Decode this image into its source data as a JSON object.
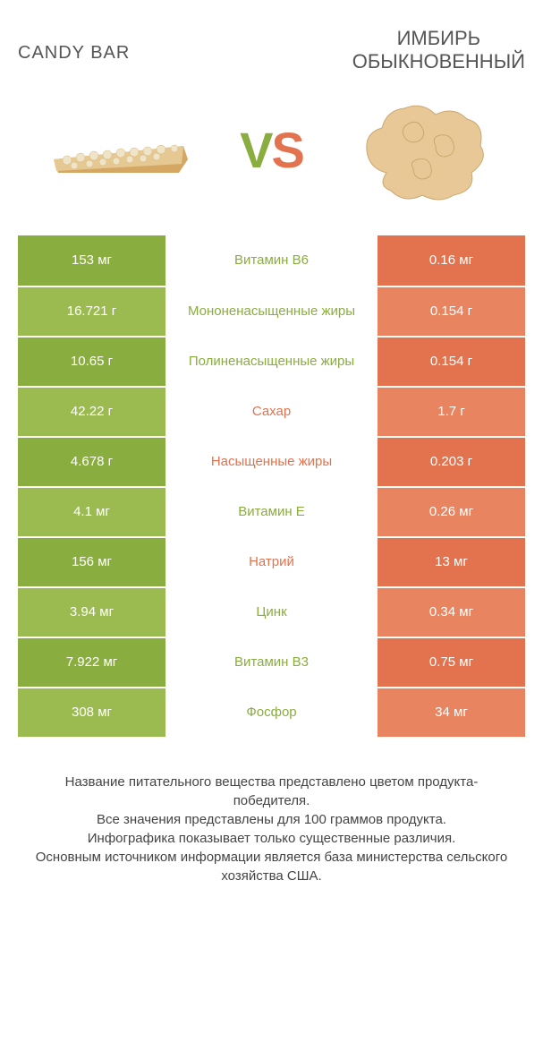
{
  "header": {
    "left_title": "CANDY BAR",
    "right_title_line1": "ИМБИРЬ",
    "right_title_line2": "ОБЫКНОВЕННЫЙ",
    "vs_v": "V",
    "vs_s": "S"
  },
  "colors": {
    "left_bar": "#8aad3f",
    "right_bar": "#e2734e",
    "left_bar_alt": "#9bbb50",
    "right_bar_alt": "#e8845f",
    "mid_green": "#8aad3f",
    "mid_orange": "#e2734e",
    "background": "#ffffff",
    "row_border": "#ffffff"
  },
  "rows": [
    {
      "left": "153 мг",
      "mid": "Витамин B6",
      "right": "0.16 мг",
      "mid_color": "#8aad3f"
    },
    {
      "left": "16.721 г",
      "mid": "Мононенасыщенные жиры",
      "right": "0.154 г",
      "mid_color": "#8aad3f"
    },
    {
      "left": "10.65 г",
      "mid": "Полиненасыщенные жиры",
      "right": "0.154 г",
      "mid_color": "#8aad3f"
    },
    {
      "left": "42.22 г",
      "mid": "Сахар",
      "right": "1.7 г",
      "mid_color": "#e2734e"
    },
    {
      "left": "4.678 г",
      "mid": "Насыщенные жиры",
      "right": "0.203 г",
      "mid_color": "#e2734e"
    },
    {
      "left": "4.1 мг",
      "mid": "Витамин E",
      "right": "0.26 мг",
      "mid_color": "#8aad3f"
    },
    {
      "left": "156 мг",
      "mid": "Натрий",
      "right": "13 мг",
      "mid_color": "#e2734e"
    },
    {
      "left": "3.94 мг",
      "mid": "Цинк",
      "right": "0.34 мг",
      "mid_color": "#8aad3f"
    },
    {
      "left": "7.922 мг",
      "mid": "Витамин B3",
      "right": "0.75 мг",
      "mid_color": "#8aad3f"
    },
    {
      "left": "308 мг",
      "mid": "Фосфор",
      "right": "34 мг",
      "mid_color": "#8aad3f"
    }
  ],
  "footer": {
    "line1": "Название питательного вещества представлено цветом продукта-победителя.",
    "line2": "Все значения представлены для 100 граммов продукта.",
    "line3": "Инфографика показывает только существенные различия.",
    "line4": "Основным источником информации является база министерства сельского хозяйства США."
  },
  "typography": {
    "title_fontsize": 20,
    "vs_fontsize": 56,
    "cell_fontsize": 15,
    "footer_fontsize": 15
  }
}
